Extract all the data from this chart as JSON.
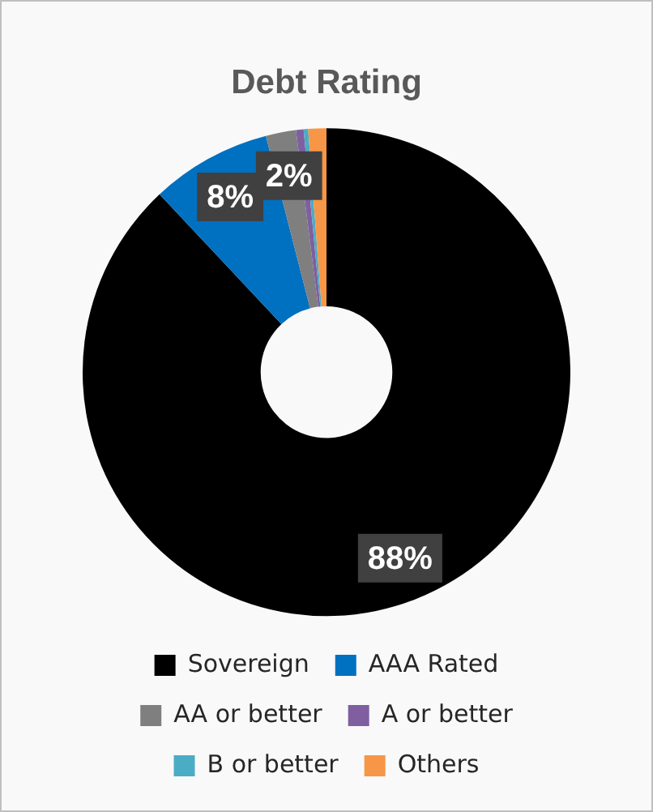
{
  "chart_data": {
    "type": "donut",
    "title": "Debt Rating",
    "categories": [
      "Sovereign",
      "AAA Rated",
      "AA or better",
      "A or better",
      "B or better",
      "Others"
    ],
    "values": [
      88,
      8,
      2,
      0.5,
      0.3,
      1.2
    ],
    "colors": [
      "#000000",
      "#0070c0",
      "#7f7f7f",
      "#7f5fa0",
      "#4bacc6",
      "#f79646"
    ],
    "value_labels": [
      "88%",
      "8%",
      "2%",
      null,
      null,
      null
    ],
    "legend": "bottom"
  }
}
